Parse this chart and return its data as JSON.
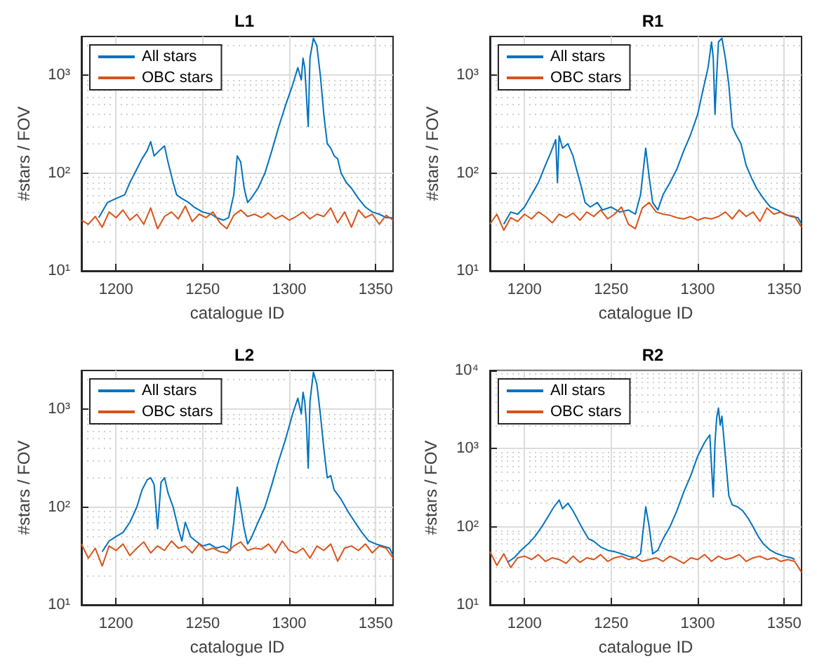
{
  "chart_data": [
    {
      "type": "line",
      "title": "L1",
      "xlabel": "catalogue ID",
      "ylabel": "#stars / FOV",
      "log": "y",
      "grid": true,
      "legend": "top left",
      "xlim": [
        1180,
        1360
      ],
      "xticks": [
        1200,
        1250,
        1300,
        1350
      ],
      "ylim": [
        10,
        2500
      ],
      "yticks": [
        {
          "value": 10,
          "label": "10¹"
        },
        {
          "value": 100,
          "label": "10²"
        },
        {
          "value": 1000,
          "label": "10³"
        }
      ],
      "series": [
        {
          "name": "All stars",
          "color": "#0072bd",
          "x": [
            1190,
            1195,
            1200,
            1205,
            1208,
            1212,
            1215,
            1218,
            1220,
            1222,
            1225,
            1228,
            1230,
            1233,
            1235,
            1238,
            1242,
            1245,
            1250,
            1255,
            1258,
            1262,
            1265,
            1268,
            1270,
            1272,
            1274,
            1276,
            1278,
            1282,
            1286,
            1290,
            1294,
            1298,
            1302,
            1305,
            1307,
            1308,
            1309,
            1310,
            1311,
            1312,
            1314,
            1316,
            1318,
            1320,
            1322,
            1324,
            1326,
            1328,
            1330,
            1333,
            1336,
            1340,
            1344,
            1348,
            1352,
            1356,
            1360
          ],
          "values": [
            35,
            50,
            55,
            60,
            80,
            110,
            140,
            170,
            210,
            150,
            170,
            190,
            130,
            80,
            60,
            55,
            50,
            45,
            40,
            38,
            35,
            33,
            35,
            60,
            150,
            130,
            70,
            50,
            55,
            70,
            100,
            170,
            300,
            500,
            800,
            1200,
            900,
            1500,
            1200,
            600,
            300,
            1500,
            2400,
            2000,
            1000,
            400,
            200,
            180,
            150,
            140,
            100,
            80,
            70,
            55,
            45,
            40,
            38,
            35,
            35
          ]
        },
        {
          "name": "OBC stars",
          "color": "#d95319",
          "x": [
            1180,
            1184,
            1188,
            1192,
            1196,
            1200,
            1204,
            1208,
            1212,
            1216,
            1220,
            1224,
            1228,
            1232,
            1236,
            1240,
            1244,
            1248,
            1252,
            1256,
            1260,
            1264,
            1268,
            1272,
            1276,
            1280,
            1284,
            1288,
            1292,
            1296,
            1300,
            1304,
            1308,
            1312,
            1316,
            1320,
            1324,
            1328,
            1332,
            1336,
            1340,
            1344,
            1348,
            1352,
            1356,
            1360
          ],
          "values": [
            33,
            30,
            36,
            28,
            40,
            35,
            42,
            33,
            38,
            30,
            44,
            27,
            36,
            40,
            34,
            46,
            32,
            38,
            35,
            40,
            31,
            27,
            37,
            42,
            36,
            38,
            35,
            39,
            34,
            37,
            33,
            36,
            40,
            34,
            38,
            36,
            44,
            31,
            40,
            28,
            42,
            35,
            38,
            30,
            37,
            33
          ]
        }
      ]
    },
    {
      "type": "line",
      "title": "R1",
      "xlabel": "catalogue ID",
      "ylabel": "#stars / FOV",
      "log": "y",
      "grid": true,
      "legend": "top left",
      "xlim": [
        1180,
        1360
      ],
      "xticks": [
        1200,
        1250,
        1300,
        1350
      ],
      "ylim": [
        10,
        2500
      ],
      "yticks": [
        {
          "value": 10,
          "label": "10¹"
        },
        {
          "value": 100,
          "label": "10²"
        },
        {
          "value": 1000,
          "label": "10³"
        }
      ],
      "series": [
        {
          "name": "All stars",
          "color": "#0072bd",
          "x": [
            1188,
            1192,
            1196,
            1200,
            1204,
            1208,
            1212,
            1215,
            1218,
            1219,
            1220,
            1222,
            1225,
            1228,
            1230,
            1233,
            1235,
            1238,
            1242,
            1245,
            1250,
            1255,
            1260,
            1264,
            1267,
            1270,
            1272,
            1274,
            1277,
            1280,
            1284,
            1288,
            1292,
            1296,
            1300,
            1303,
            1306,
            1308,
            1309,
            1310,
            1311,
            1312,
            1314,
            1316,
            1318,
            1320,
            1322,
            1325,
            1328,
            1331,
            1334,
            1338,
            1342,
            1346,
            1350,
            1354,
            1358,
            1360
          ],
          "values": [
            30,
            40,
            38,
            45,
            60,
            80,
            120,
            160,
            220,
            80,
            240,
            180,
            200,
            150,
            110,
            70,
            50,
            45,
            50,
            42,
            45,
            40,
            42,
            38,
            60,
            180,
            90,
            50,
            42,
            60,
            80,
            110,
            170,
            250,
            400,
            700,
            1200,
            2200,
            1500,
            400,
            1000,
            2200,
            2400,
            1500,
            800,
            300,
            250,
            200,
            120,
            90,
            70,
            55,
            45,
            42,
            38,
            36,
            35,
            30
          ]
        },
        {
          "name": "OBC stars",
          "color": "#d95319",
          "x": [
            1180,
            1184,
            1188,
            1192,
            1196,
            1200,
            1204,
            1208,
            1212,
            1216,
            1220,
            1224,
            1228,
            1232,
            1236,
            1240,
            1244,
            1248,
            1252,
            1256,
            1260,
            1264,
            1268,
            1272,
            1276,
            1280,
            1284,
            1288,
            1292,
            1296,
            1300,
            1304,
            1308,
            1312,
            1316,
            1320,
            1324,
            1328,
            1332,
            1336,
            1340,
            1344,
            1348,
            1352,
            1356,
            1360
          ],
          "values": [
            30,
            38,
            26,
            35,
            32,
            38,
            34,
            40,
            36,
            31,
            38,
            35,
            39,
            33,
            40,
            36,
            42,
            34,
            38,
            45,
            30,
            27,
            44,
            50,
            40,
            38,
            37,
            35,
            34,
            36,
            33,
            35,
            34,
            36,
            40,
            34,
            42,
            36,
            40,
            32,
            44,
            38,
            40,
            37,
            36,
            28
          ]
        }
      ]
    },
    {
      "type": "line",
      "title": "L2",
      "xlabel": "catalogue ID",
      "ylabel": "#stars / FOV",
      "log": "y",
      "grid": true,
      "legend": "top left",
      "xlim": [
        1180,
        1360
      ],
      "xticks": [
        1200,
        1250,
        1300,
        1350
      ],
      "ylim": [
        10,
        2500
      ],
      "yticks": [
        {
          "value": 10,
          "label": "10¹"
        },
        {
          "value": 100,
          "label": "10²"
        },
        {
          "value": 1000,
          "label": "10³"
        }
      ],
      "series": [
        {
          "name": "All stars",
          "color": "#0072bd",
          "x": [
            1192,
            1196,
            1200,
            1204,
            1208,
            1212,
            1215,
            1218,
            1220,
            1222,
            1224,
            1226,
            1228,
            1230,
            1233,
            1236,
            1238,
            1240,
            1243,
            1246,
            1250,
            1254,
            1258,
            1262,
            1266,
            1268,
            1270,
            1272,
            1274,
            1276,
            1278,
            1282,
            1286,
            1290,
            1294,
            1298,
            1302,
            1305,
            1307,
            1308,
            1309,
            1310,
            1311,
            1312,
            1314,
            1316,
            1318,
            1320,
            1322,
            1324,
            1326,
            1330,
            1334,
            1338,
            1342,
            1346,
            1350,
            1354,
            1358,
            1360
          ],
          "values": [
            35,
            45,
            50,
            55,
            70,
            100,
            150,
            190,
            200,
            170,
            60,
            180,
            200,
            140,
            100,
            60,
            45,
            70,
            50,
            45,
            40,
            42,
            38,
            40,
            36,
            70,
            160,
            100,
            60,
            42,
            48,
            70,
            100,
            170,
            300,
            500,
            900,
            1300,
            900,
            1500,
            1200,
            700,
            250,
            1200,
            2400,
            1800,
            900,
            400,
            200,
            210,
            150,
            120,
            90,
            70,
            55,
            45,
            42,
            40,
            38,
            32
          ]
        },
        {
          "name": "OBC stars",
          "color": "#d95319",
          "x": [
            1180,
            1184,
            1188,
            1192,
            1196,
            1200,
            1204,
            1208,
            1212,
            1216,
            1220,
            1224,
            1228,
            1232,
            1236,
            1240,
            1244,
            1248,
            1252,
            1256,
            1260,
            1264,
            1268,
            1272,
            1276,
            1280,
            1284,
            1288,
            1292,
            1296,
            1300,
            1304,
            1308,
            1312,
            1316,
            1320,
            1324,
            1328,
            1332,
            1336,
            1340,
            1344,
            1348,
            1352,
            1356,
            1360
          ],
          "values": [
            42,
            30,
            38,
            25,
            40,
            36,
            42,
            32,
            38,
            44,
            34,
            40,
            36,
            45,
            38,
            40,
            34,
            42,
            36,
            38,
            35,
            34,
            40,
            44,
            36,
            38,
            37,
            42,
            34,
            45,
            36,
            34,
            38,
            30,
            40,
            36,
            42,
            28,
            38,
            40,
            36,
            42,
            34,
            40,
            38,
            30
          ]
        }
      ]
    },
    {
      "type": "line",
      "title": "R2",
      "xlabel": "catalogue ID",
      "ylabel": "#stars / FOV",
      "log": "y",
      "grid": true,
      "legend": "top left",
      "xlim": [
        1180,
        1360
      ],
      "xticks": [
        1200,
        1250,
        1300,
        1350
      ],
      "ylim": [
        10,
        10000
      ],
      "yticks": [
        {
          "value": 10,
          "label": "10¹"
        },
        {
          "value": 100,
          "label": "10²"
        },
        {
          "value": 1000,
          "label": "10³"
        },
        {
          "value": 10000,
          "label": "10⁴"
        }
      ],
      "series": [
        {
          "name": "All stars",
          "color": "#0072bd",
          "x": [
            1190,
            1194,
            1198,
            1202,
            1206,
            1210,
            1214,
            1217,
            1220,
            1222,
            1225,
            1228,
            1231,
            1234,
            1237,
            1240,
            1244,
            1248,
            1252,
            1256,
            1260,
            1264,
            1267,
            1270,
            1272,
            1274,
            1277,
            1280,
            1284,
            1288,
            1292,
            1296,
            1300,
            1304,
            1307,
            1309,
            1310,
            1311,
            1312,
            1313,
            1314,
            1316,
            1318,
            1320,
            1323,
            1326,
            1329,
            1332,
            1335,
            1338,
            1342,
            1346,
            1350,
            1354,
            1356
          ],
          "values": [
            35,
            40,
            50,
            60,
            75,
            100,
            140,
            180,
            220,
            170,
            200,
            160,
            120,
            90,
            70,
            65,
            55,
            50,
            48,
            45,
            42,
            40,
            45,
            180,
            100,
            45,
            50,
            70,
            100,
            160,
            280,
            450,
            800,
            1200,
            1500,
            240,
            1200,
            2500,
            3300,
            2000,
            2600,
            800,
            250,
            190,
            180,
            160,
            130,
            100,
            75,
            60,
            50,
            45,
            42,
            40,
            38
          ]
        },
        {
          "name": "OBC stars",
          "color": "#d95319",
          "x": [
            1180,
            1184,
            1188,
            1192,
            1196,
            1200,
            1204,
            1208,
            1212,
            1216,
            1220,
            1224,
            1228,
            1232,
            1236,
            1240,
            1244,
            1248,
            1252,
            1256,
            1260,
            1264,
            1268,
            1272,
            1276,
            1280,
            1284,
            1288,
            1292,
            1296,
            1300,
            1304,
            1308,
            1312,
            1316,
            1320,
            1324,
            1328,
            1332,
            1336,
            1340,
            1344,
            1348,
            1352,
            1356,
            1360
          ],
          "values": [
            48,
            32,
            45,
            30,
            40,
            42,
            38,
            44,
            36,
            40,
            38,
            34,
            42,
            35,
            40,
            38,
            44,
            36,
            40,
            42,
            38,
            40,
            36,
            38,
            40,
            36,
            42,
            38,
            34,
            40,
            38,
            44,
            36,
            42,
            38,
            40,
            44,
            36,
            40,
            42,
            38,
            40,
            36,
            38,
            36,
            26
          ]
        }
      ]
    }
  ]
}
